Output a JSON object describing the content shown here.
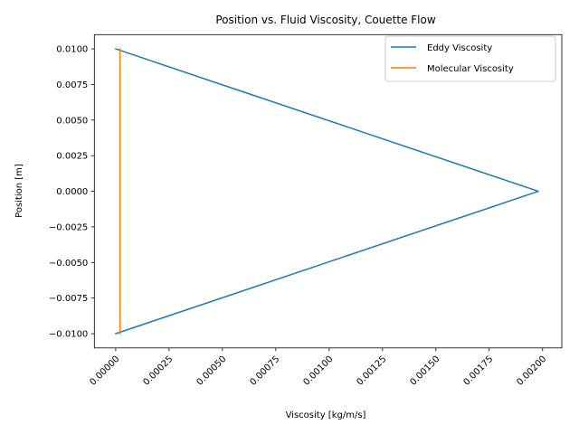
{
  "chart_data": {
    "type": "line",
    "title": "Position vs. Fluid Viscosity, Couette Flow",
    "xlabel": "Viscosity [kg/m/s]",
    "ylabel": "Position [m]",
    "xlim": [
      -0.0001,
      0.00209
    ],
    "ylim": [
      -0.011,
      0.011
    ],
    "xticks": [
      0.0,
      0.00025,
      0.0005,
      0.00075,
      0.001,
      0.00125,
      0.0015,
      0.00175,
      0.002
    ],
    "xtick_labels": [
      "0.00000",
      "0.00025",
      "0.00050",
      "0.00075",
      "0.00100",
      "0.00125",
      "0.00150",
      "0.00175",
      "0.00200"
    ],
    "yticks": [
      -0.01,
      -0.0075,
      -0.005,
      -0.0025,
      0.0,
      0.0025,
      0.005,
      0.0075,
      0.01
    ],
    "ytick_labels": [
      "−0.0100",
      "−0.0075",
      "−0.0050",
      "−0.0025",
      "0.0000",
      "0.0025",
      "0.0050",
      "0.0075",
      "0.0100"
    ],
    "grid": false,
    "legend_position": "top-right",
    "series": [
      {
        "name": "Eddy Viscosity",
        "color": "#1f77b4",
        "x": [
          0.0,
          0.00198,
          0.0
        ],
        "y": [
          0.01,
          0.0,
          -0.01
        ]
      },
      {
        "name": "Molecular Viscosity",
        "color": "#ff7f0e",
        "x": [
          2e-05,
          2e-05
        ],
        "y": [
          0.01,
          -0.01
        ]
      }
    ]
  }
}
